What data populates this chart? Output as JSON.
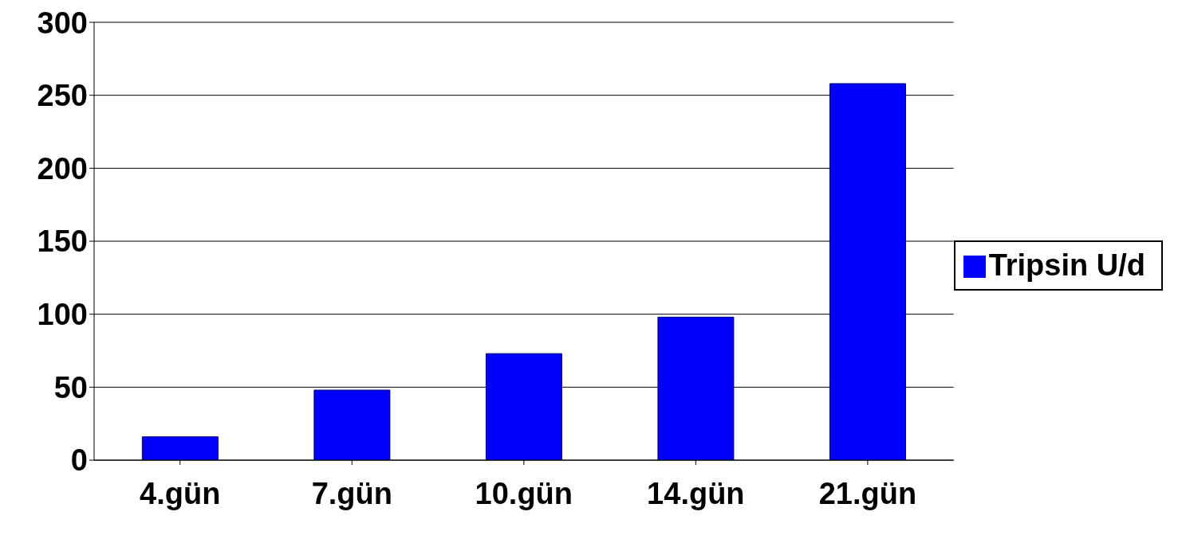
{
  "chart_data": {
    "type": "bar",
    "categories": [
      "4.gün",
      "7.gün",
      "10.gün",
      "14.gün",
      "21.gün"
    ],
    "series": [
      {
        "name": "Tripsin U/d",
        "color": "#0000ff",
        "values": [
          16,
          48,
          73,
          98,
          258
        ]
      }
    ],
    "ylim": [
      0,
      300
    ],
    "yticks": [
      0,
      50,
      100,
      150,
      200,
      250,
      300
    ],
    "grid": "y",
    "legend": "right"
  }
}
